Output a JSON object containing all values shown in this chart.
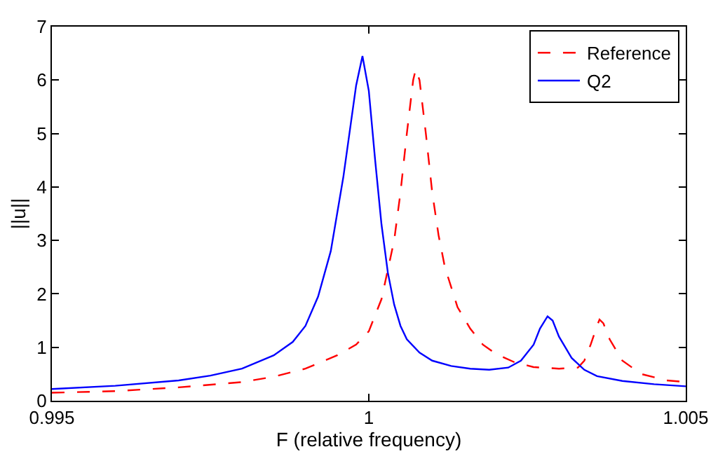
{
  "chart_data": {
    "type": "line",
    "xlabel": "F (relative frequency)",
    "ylabel": "||u||",
    "xlim": [
      0.995,
      1.005
    ],
    "xticks": [
      0.995,
      1,
      1.005
    ],
    "ylim": [
      0,
      7
    ],
    "yticks": [
      0,
      1,
      2,
      3,
      4,
      5,
      6,
      7
    ],
    "legend": "top right",
    "marker": "none",
    "series": [
      {
        "name": "Reference",
        "color": "#ff0000",
        "line_style": "dashed",
        "x": [
          0.995,
          0.996,
          0.997,
          0.998,
          0.9985,
          0.999,
          0.9995,
          0.9998,
          1.0,
          1.0002,
          1.0004,
          1.0005,
          1.0006,
          1.0007,
          1.00074,
          1.0008,
          1.0009,
          1.001,
          1.0011,
          1.0012,
          1.0014,
          1.0016,
          1.0018,
          1.002,
          1.0023,
          1.0026,
          1.003,
          1.0033,
          1.0034,
          1.0035,
          1.0036,
          1.00364,
          1.0037,
          1.0038,
          1.004,
          1.0043,
          1.0047,
          1.005
        ],
        "values": [
          0.15,
          0.18,
          0.25,
          0.35,
          0.45,
          0.6,
          0.85,
          1.05,
          1.3,
          1.9,
          3.0,
          3.9,
          5.0,
          6.0,
          6.2,
          6.0,
          5.0,
          3.9,
          3.1,
          2.5,
          1.75,
          1.35,
          1.05,
          0.88,
          0.72,
          0.63,
          0.6,
          0.62,
          0.75,
          1.05,
          1.4,
          1.52,
          1.45,
          1.15,
          0.75,
          0.5,
          0.38,
          0.35
        ]
      },
      {
        "name": "Q2",
        "color": "#0000ff",
        "line_style": "solid",
        "x": [
          0.995,
          0.996,
          0.997,
          0.9975,
          0.998,
          0.9985,
          0.9988,
          0.999,
          0.9992,
          0.9994,
          0.9996,
          0.9998,
          0.9999,
          1.0,
          1.0001,
          1.0002,
          1.0003,
          1.0004,
          1.0005,
          1.0006,
          1.0008,
          1.001,
          1.0013,
          1.0016,
          1.0019,
          1.0022,
          1.0024,
          1.0026,
          1.0027,
          1.00282,
          1.0029,
          1.003,
          1.0032,
          1.0034,
          1.0036,
          1.004,
          1.0045,
          1.005
        ],
        "values": [
          0.22,
          0.28,
          0.38,
          0.47,
          0.6,
          0.85,
          1.1,
          1.4,
          1.95,
          2.8,
          4.2,
          5.9,
          6.45,
          5.8,
          4.5,
          3.3,
          2.4,
          1.8,
          1.4,
          1.15,
          0.9,
          0.75,
          0.65,
          0.6,
          0.58,
          0.62,
          0.75,
          1.05,
          1.35,
          1.58,
          1.5,
          1.2,
          0.8,
          0.58,
          0.46,
          0.37,
          0.31,
          0.27
        ]
      }
    ]
  }
}
